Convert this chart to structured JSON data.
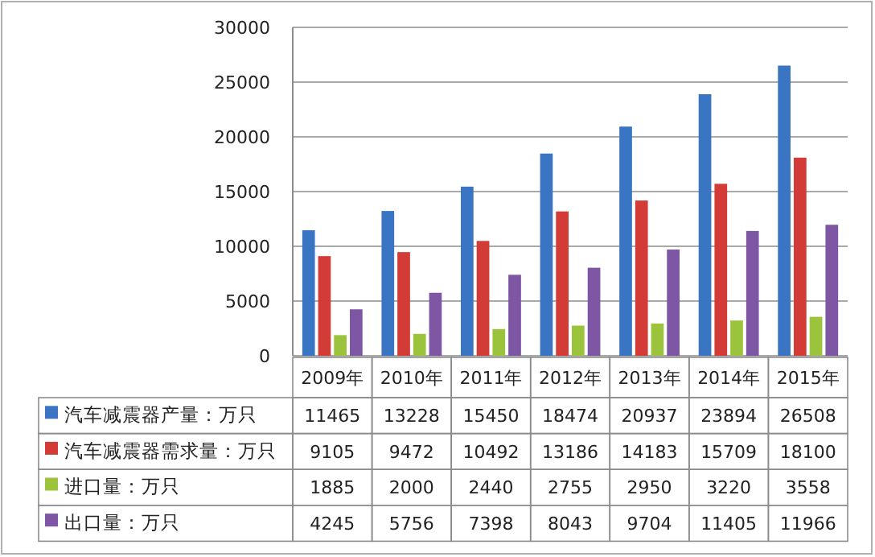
{
  "chart_data": {
    "type": "bar",
    "categories": [
      "2009年",
      "2010年",
      "2011年",
      "2012年",
      "2013年",
      "2014年",
      "2015年"
    ],
    "series": [
      {
        "name": "汽车减震器产量：万只",
        "color": "#3a75c4",
        "values": [
          11465,
          13228,
          15450,
          18474,
          20937,
          23894,
          26508
        ]
      },
      {
        "name": "汽车减震器需求量：万只",
        "color": "#d23b36",
        "values": [
          9105,
          9472,
          10492,
          13186,
          14183,
          15709,
          18100
        ]
      },
      {
        "name": "进口量：万只",
        "color": "#9bc43c",
        "values": [
          1885,
          2000,
          2440,
          2755,
          2950,
          3220,
          3558
        ]
      },
      {
        "name": "出口量：万只",
        "color": "#7d57a3",
        "values": [
          4245,
          5756,
          7398,
          8043,
          9704,
          11405,
          11966
        ]
      }
    ],
    "ylim": [
      0,
      30000
    ],
    "yticks": [
      0,
      5000,
      10000,
      15000,
      20000,
      25000,
      30000
    ],
    "grid": "y",
    "legend": "bottom",
    "data_labels": true
  }
}
